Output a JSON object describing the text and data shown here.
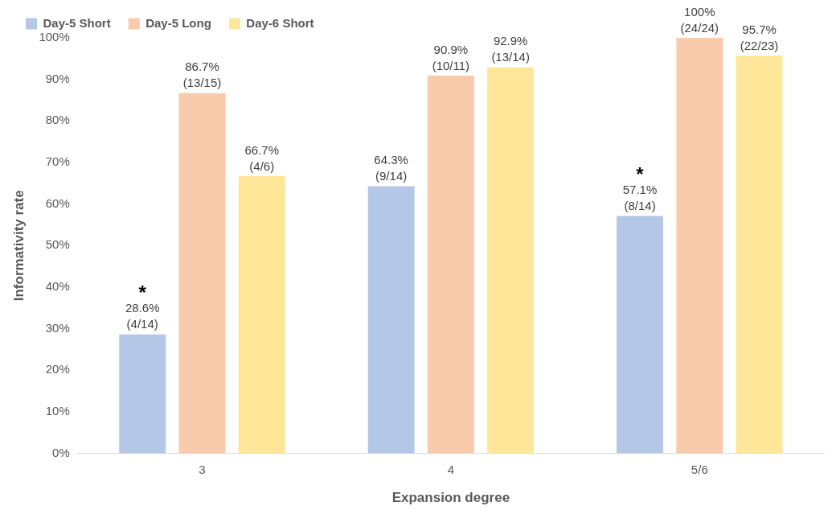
{
  "chart_data": {
    "type": "bar",
    "xlabel": "Expansion degree",
    "ylabel": "Informativity rate",
    "categories": [
      "3",
      "4",
      "5/6"
    ],
    "series": [
      {
        "name": "Day-5 Short",
        "color": "#b4c7e7",
        "values": [
          28.6,
          64.3,
          57.1
        ],
        "value_labels": [
          "* 28.6% (4/14)",
          "64.3% (9/14)",
          "* 57.1% (8/14)"
        ]
      },
      {
        "name": "Day-5 Long",
        "color": "#f8cbad",
        "values": [
          86.7,
          90.9,
          100
        ],
        "value_labels": [
          "86.7% (13/15)",
          "90.9% (10/11)",
          "100% (24/24)"
        ]
      },
      {
        "name": "Day-6 Short",
        "color": "#ffe699",
        "values": [
          66.7,
          92.9,
          95.7
        ],
        "value_labels": [
          "66.7% (4/6)",
          "92.9% (13/14)",
          "95.7% (22/23)"
        ]
      }
    ],
    "ylim": [
      0,
      100
    ],
    "yticks": [
      {
        "value": 0,
        "label": "0%"
      },
      {
        "value": 10,
        "label": "10%"
      },
      {
        "value": 20,
        "label": "20%"
      },
      {
        "value": 30,
        "label": "30%"
      },
      {
        "value": 40,
        "label": "40%"
      },
      {
        "value": 50,
        "label": "50%"
      },
      {
        "value": 60,
        "label": "60%"
      },
      {
        "value": 70,
        "label": "70%"
      },
      {
        "value": 80,
        "label": "80%"
      },
      {
        "value": 90,
        "label": "90%"
      },
      {
        "value": 100,
        "label": "100%"
      }
    ],
    "grid": false,
    "legend": "top left"
  }
}
